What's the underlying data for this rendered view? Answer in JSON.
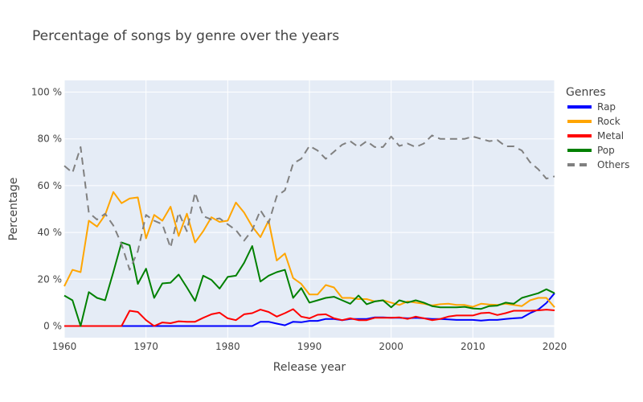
{
  "chart_data": {
    "type": "line",
    "title": "Percentage of songs by genre over the years",
    "xlabel": "Release year",
    "ylabel": "Percentage",
    "xlim": [
      1960,
      2020
    ],
    "ylim": [
      -5,
      105
    ],
    "xticks": [
      1960,
      1970,
      1980,
      1990,
      2000,
      2010,
      2020
    ],
    "xtick_labels": [
      "1960",
      "1970",
      "1980",
      "1990",
      "2000",
      "2010",
      "2020"
    ],
    "yticks": [
      0,
      20,
      40,
      60,
      80,
      100
    ],
    "ytick_labels": [
      "0 %",
      "20 %",
      "40 %",
      "60 %",
      "80 %",
      "100 %"
    ],
    "grid": true,
    "legend_title": "Genres",
    "legend_position": "right",
    "x": [
      1960,
      1961,
      1962,
      1963,
      1964,
      1965,
      1966,
      1967,
      1968,
      1969,
      1970,
      1971,
      1972,
      1973,
      1974,
      1975,
      1976,
      1977,
      1978,
      1979,
      1980,
      1981,
      1982,
      1983,
      1984,
      1985,
      1986,
      1987,
      1988,
      1989,
      1990,
      1991,
      1992,
      1993,
      1994,
      1995,
      1996,
      1997,
      1998,
      1999,
      2000,
      2001,
      2002,
      2003,
      2004,
      2005,
      2006,
      2007,
      2008,
      2009,
      2010,
      2011,
      2012,
      2013,
      2014,
      2015,
      2016,
      2017,
      2018,
      2019,
      2020
    ],
    "series": [
      {
        "name": "Rap",
        "color": "#0000ff",
        "dash": "solid",
        "values": [
          0,
          0,
          0,
          0,
          0,
          0,
          0,
          0,
          0,
          0,
          0,
          0,
          0,
          0,
          0,
          0,
          0,
          0,
          0,
          0,
          0,
          0,
          0,
          0,
          1.8,
          1.8,
          1,
          0.3,
          1.8,
          1.6,
          2.2,
          2.2,
          3,
          3,
          2.5,
          3,
          3,
          3,
          3.7,
          3.7,
          3.5,
          3.5,
          3.3,
          3.5,
          3.3,
          3,
          3,
          2.8,
          2.6,
          2.6,
          2.6,
          2.3,
          2.6,
          2.6,
          3,
          3.3,
          3.5,
          5.5,
          7,
          9.8,
          14
        ]
      },
      {
        "name": "Rock",
        "color": "#ffa500",
        "dash": "solid",
        "values": [
          17,
          24,
          23,
          45,
          42.5,
          47.5,
          57.3,
          52.5,
          54.5,
          55,
          37.5,
          47.5,
          45,
          51,
          38.5,
          48,
          35.7,
          40.5,
          46.5,
          44.5,
          45,
          52.8,
          48.5,
          42.5,
          38,
          45,
          28,
          31,
          20.5,
          18,
          13.5,
          13.5,
          17.5,
          16.5,
          12,
          12,
          11.5,
          11.5,
          10.5,
          11,
          10,
          9,
          10.5,
          10,
          9.5,
          8.8,
          9.3,
          9.5,
          9,
          9,
          8.2,
          9.5,
          9.2,
          9,
          9.5,
          9,
          8.5,
          11,
          12,
          12,
          8
        ]
      },
      {
        "name": "Metal",
        "color": "#ff0000",
        "dash": "solid",
        "values": [
          0,
          0,
          0,
          0,
          0,
          0,
          0,
          0,
          6.5,
          6,
          2.5,
          0,
          1.5,
          1.2,
          2,
          1.8,
          1.8,
          3.5,
          5,
          5.7,
          3.3,
          2.5,
          5,
          5.5,
          7,
          6,
          4,
          5.5,
          7.2,
          4,
          3.3,
          4.8,
          5,
          3.3,
          2.5,
          3.3,
          2.5,
          2.5,
          3.5,
          3.5,
          3.5,
          3.7,
          3,
          4,
          3.3,
          2.5,
          3,
          4,
          4.5,
          4.5,
          4.5,
          5.5,
          5.7,
          4.7,
          5.5,
          6.5,
          6.5,
          6.5,
          6.7,
          7,
          6.7
        ]
      },
      {
        "name": "Pop",
        "color": "#008000",
        "dash": "solid",
        "values": [
          13,
          11,
          0,
          14.5,
          12,
          11,
          23,
          35.7,
          34.5,
          18,
          24.5,
          12,
          18.2,
          18.5,
          22,
          16.5,
          10.7,
          21.5,
          19.7,
          16,
          21,
          21.5,
          27,
          34.2,
          19,
          21.5,
          23,
          24,
          12,
          16.2,
          10,
          11,
          12,
          12.5,
          11,
          9.5,
          13,
          9.3,
          10.5,
          11,
          8,
          11,
          10,
          11,
          10,
          8.5,
          8,
          8,
          8,
          8.2,
          7.5,
          7.3,
          8.5,
          8.7,
          10,
          9.5,
          12,
          13,
          14,
          15.7,
          14
        ]
      },
      {
        "name": "Others",
        "color": "#808080",
        "dash": "dash",
        "values": [
          68.5,
          65.5,
          76.5,
          48.5,
          45.5,
          48,
          43,
          35,
          24,
          32,
          47.5,
          45,
          43.5,
          33.5,
          48.5,
          40.5,
          57,
          47,
          45.5,
          46,
          43.5,
          41,
          36.5,
          41,
          49.5,
          44,
          55.5,
          58,
          69.5,
          71.5,
          77,
          75,
          71.5,
          74.5,
          77.5,
          79,
          76.5,
          79,
          76.5,
          76.5,
          81,
          77,
          78,
          76.5,
          78,
          81.5,
          80,
          80,
          80,
          80,
          81,
          80,
          79,
          79.5,
          76.8,
          76.8,
          75,
          70,
          67,
          63,
          64
        ]
      }
    ]
  }
}
